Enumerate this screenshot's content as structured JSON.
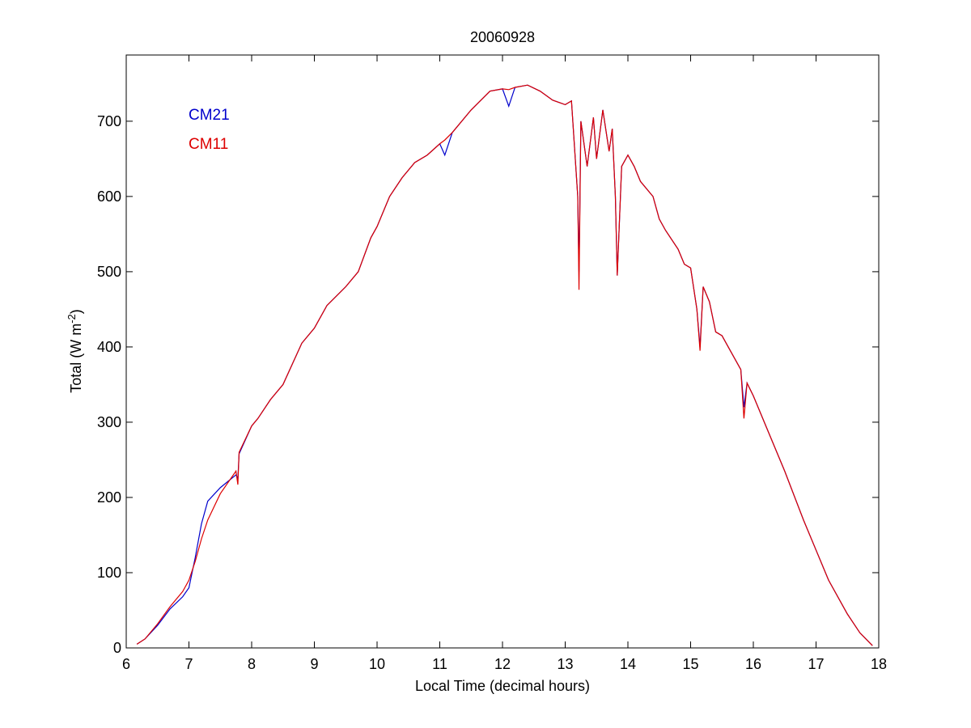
{
  "chart_data": {
    "type": "line",
    "title": "20060928",
    "xlabel": "Local Time (decimal hours)",
    "ylabel": [
      "Total (W m",
      "-2",
      ")"
    ],
    "xlim": [
      6,
      18
    ],
    "xticks": [
      6,
      7,
      8,
      9,
      10,
      11,
      12,
      13,
      14,
      15,
      16,
      17,
      18
    ],
    "ylim": [
      0,
      788
    ],
    "yticks": [
      0,
      100,
      200,
      300,
      400,
      500,
      600,
      700
    ],
    "legend": "upper left",
    "x": [
      6.17,
      6.3,
      6.5,
      6.7,
      6.9,
      7.0,
      7.1,
      7.2,
      7.3,
      7.5,
      7.75,
      7.78,
      7.8,
      8.0,
      8.1,
      8.3,
      8.5,
      8.8,
      9.0,
      9.2,
      9.5,
      9.7,
      9.9,
      10.0,
      10.2,
      10.4,
      10.6,
      10.8,
      11.0,
      11.08,
      11.2,
      11.5,
      11.8,
      12.0,
      12.1,
      12.2,
      12.4,
      12.6,
      12.8,
      13.0,
      13.1,
      13.2,
      13.22,
      13.25,
      13.35,
      13.45,
      13.5,
      13.6,
      13.7,
      13.75,
      13.8,
      13.83,
      13.9,
      14.0,
      14.1,
      14.2,
      14.4,
      14.5,
      14.6,
      14.8,
      14.9,
      15.0,
      15.1,
      15.15,
      15.2,
      15.3,
      15.4,
      15.5,
      15.6,
      15.8,
      15.85,
      15.9,
      16.0,
      16.2,
      16.5,
      16.8,
      17.0,
      17.2,
      17.5,
      17.7,
      17.9
    ],
    "series": [
      {
        "name": "CM21",
        "color": "#0000cc",
        "values": [
          5,
          12,
          30,
          52,
          68,
          80,
          120,
          165,
          195,
          213,
          230,
          225,
          258,
          295,
          305,
          330,
          350,
          405,
          425,
          455,
          480,
          500,
          545,
          560,
          600,
          625,
          645,
          655,
          670,
          655,
          685,
          715,
          740,
          743,
          720,
          745,
          748,
          740,
          728,
          722,
          727,
          600,
          500,
          700,
          640,
          705,
          650,
          715,
          660,
          690,
          600,
          495,
          640,
          655,
          640,
          620,
          600,
          570,
          555,
          530,
          510,
          505,
          450,
          400,
          480,
          460,
          420,
          415,
          400,
          370,
          320,
          352,
          335,
          295,
          235,
          170,
          130,
          90,
          45,
          20,
          3
        ]
      },
      {
        "name": "CM11",
        "color": "#dd0000",
        "values": [
          5,
          12,
          32,
          55,
          75,
          90,
          115,
          145,
          170,
          205,
          235,
          217,
          260,
          295,
          305,
          330,
          350,
          405,
          425,
          455,
          480,
          500,
          545,
          560,
          600,
          625,
          645,
          655,
          670,
          675,
          685,
          715,
          740,
          743,
          742,
          745,
          748,
          740,
          728,
          722,
          727,
          600,
          476,
          700,
          640,
          705,
          650,
          715,
          660,
          690,
          600,
          495,
          640,
          655,
          640,
          620,
          600,
          570,
          555,
          530,
          510,
          505,
          450,
          395,
          480,
          460,
          420,
          415,
          400,
          370,
          305,
          352,
          335,
          295,
          235,
          170,
          130,
          90,
          45,
          20,
          3
        ]
      }
    ]
  }
}
